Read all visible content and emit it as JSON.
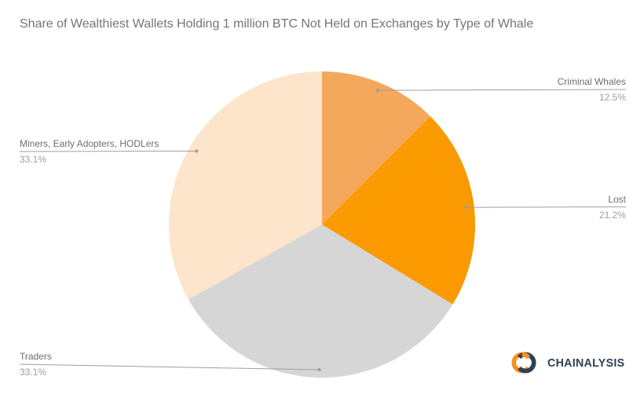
{
  "chart_data": {
    "type": "pie",
    "title": "Share of Wealthiest Wallets Holding 1 million BTC Not Held on Exchanges by Type of Whale",
    "start_angle_deg": 0,
    "direction": "clockwise",
    "legend": "callout-labels",
    "slices": [
      {
        "label": "Criminal Whales",
        "value": 12.5,
        "display": "12.5%",
        "color": "#F4A85B"
      },
      {
        "label": "Lost",
        "value": 21.2,
        "display": "21.2%",
        "color": "#FB9A00"
      },
      {
        "label": "Traders",
        "value": 33.1,
        "display": "33.1%",
        "color": "#D6D6D6"
      },
      {
        "label": "Miners, Early Adopters, HODLers",
        "value": 33.1,
        "display": "33.1%",
        "color": "#FCE5CB"
      }
    ],
    "label_colors": {
      "name": "#6e6e6e",
      "percent": "#9e9e9e"
    },
    "callout_line_color": "#9e9e9e"
  },
  "branding": {
    "wordmark": "CHAINALYSIS",
    "icon": "chainalysis-chain-link-icon",
    "navy": "#2E4154",
    "orange": "#F6921E"
  }
}
